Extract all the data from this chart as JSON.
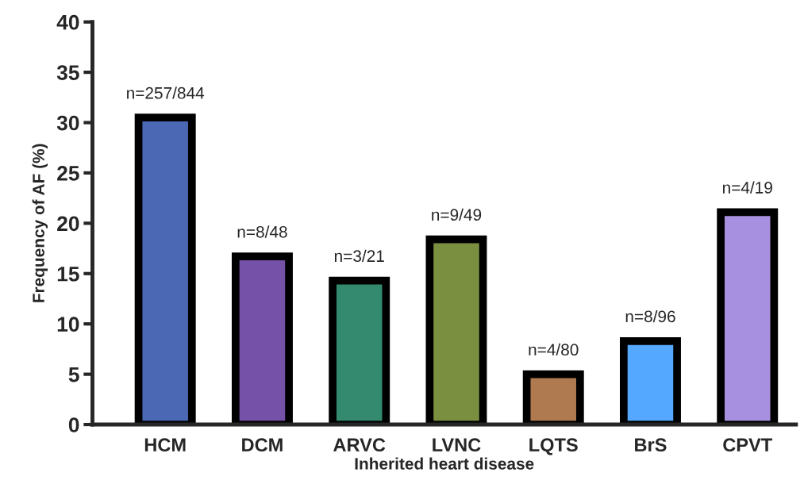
{
  "chart_data": {
    "type": "bar",
    "xlabel": "Inherited heart disease",
    "ylabel": "Frequency of AF (%)",
    "categories": [
      "HCM",
      "DCM",
      "ARVC",
      "LVNC",
      "LQTS",
      "BrS",
      "CPVT"
    ],
    "values": [
      30.5,
      16.7,
      14.3,
      18.4,
      5.0,
      8.3,
      21.1
    ],
    "colors": [
      "#4a68b4",
      "#7552a8",
      "#338a6e",
      "#7a9040",
      "#b07a50",
      "#55a8ff",
      "#a890e0"
    ],
    "value_labels": [
      "n=257/844",
      "n=8/48",
      "n=3/21",
      "n=9/49",
      "n=4/80",
      "n=8/96",
      "n=4/19"
    ],
    "ylim": [
      0,
      40
    ],
    "yticks": [
      0,
      5,
      10,
      15,
      20,
      25,
      30,
      35,
      40
    ],
    "grid": false,
    "legend": false
  }
}
